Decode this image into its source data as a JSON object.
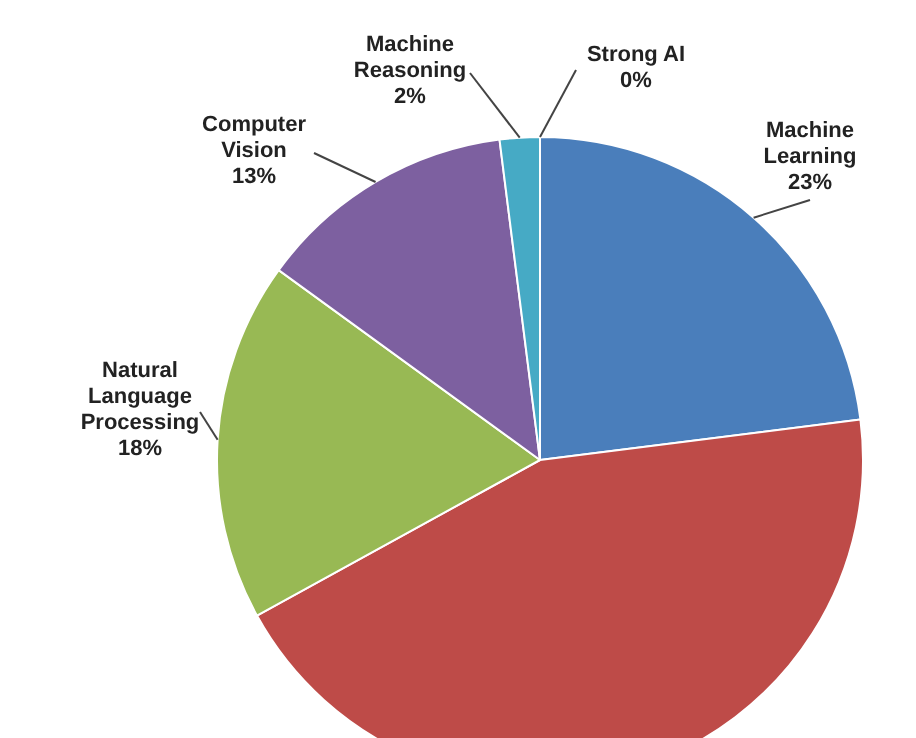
{
  "chart_data": {
    "type": "pie",
    "categories": [
      "Machine Learning",
      null,
      "Natural Language Processing",
      "Computer Vision",
      "Machine Reasoning",
      "Strong AI"
    ],
    "values": [
      23,
      44,
      18,
      13,
      2,
      0
    ],
    "value_labels": [
      "23%",
      null,
      "18%",
      "13%",
      "2%",
      "0%"
    ],
    "colors": [
      "#4a7ebb",
      "#be4b48",
      "#98b954",
      "#7d60a0",
      "#46aac5",
      "#f79646"
    ],
    "legend": false
  }
}
